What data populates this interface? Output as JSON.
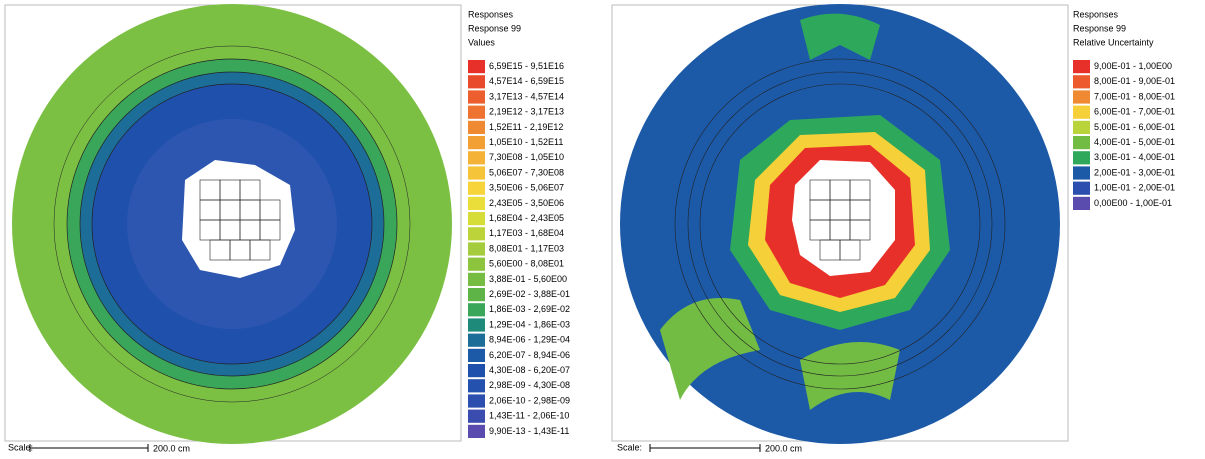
{
  "panels": [
    {
      "legend": {
        "header": "Responses",
        "response": "Response 99",
        "quantity": "Values",
        "entries": [
          {
            "label": "6,59E15 - 9,51E16",
            "color": "#e8302a"
          },
          {
            "label": "4,57E14 - 6,59E15",
            "color": "#ea4a2c"
          },
          {
            "label": "3,17E13 - 4,57E14",
            "color": "#ec5e2e"
          },
          {
            "label": "2,19E12 - 3,17E13",
            "color": "#ee7330"
          },
          {
            "label": "1,52E11 - 2,19E12",
            "color": "#f08a32"
          },
          {
            "label": "1,05E10 - 1,52E11",
            "color": "#f29f34"
          },
          {
            "label": "7,30E08 - 1,05E10",
            "color": "#f4b236"
          },
          {
            "label": "5,06E07 - 7,30E08",
            "color": "#f6c438"
          },
          {
            "label": "3,50E06 - 5,06E07",
            "color": "#f6d43a"
          },
          {
            "label": "2,43E05 - 3,50E06",
            "color": "#eade3a"
          },
          {
            "label": "1,68E04 - 2,43E05",
            "color": "#d6dc38"
          },
          {
            "label": "1,17E03 - 1,68E04",
            "color": "#bcd43a"
          },
          {
            "label": "8,08E01 - 1,17E03",
            "color": "#a4cc3c"
          },
          {
            "label": "5,60E00 - 8,08E01",
            "color": "#8cc43e"
          },
          {
            "label": "3,88E-01 - 5,60E00",
            "color": "#76bc42"
          },
          {
            "label": "2,69E-02 - 3,88E-01",
            "color": "#5eb446"
          },
          {
            "label": "1,86E-03 - 2,69E-02",
            "color": "#3aa65a"
          },
          {
            "label": "1,29E-04 - 1,86E-03",
            "color": "#1e8a7a"
          },
          {
            "label": "8,94E-06 - 1,29E-04",
            "color": "#1c6e98"
          },
          {
            "label": "6,20E-07 - 8,94E-06",
            "color": "#1c5aa8"
          },
          {
            "label": "4,30E-08 - 6,20E-07",
            "color": "#1e50ac"
          },
          {
            "label": "2,98E-09 - 4,30E-08",
            "color": "#2450ae"
          },
          {
            "label": "2,06E-10 - 2,98E-09",
            "color": "#2c4eae"
          },
          {
            "label": "1,43E-11 - 2,06E-10",
            "color": "#3a4cae"
          },
          {
            "label": "9,90E-13 - 1,43E-11",
            "color": "#5a4cae"
          }
        ]
      },
      "scale": {
        "label": "Scale:",
        "length": "200.0 cm"
      }
    },
    {
      "legend": {
        "header": "Responses",
        "response": "Response 99",
        "quantity": "Relative Uncertainty",
        "entries": [
          {
            "label": "9,00E-01 - 1,00E00",
            "color": "#e8302a"
          },
          {
            "label": "8,00E-01 - 9,00E-01",
            "color": "#ec5a2e"
          },
          {
            "label": "7,00E-01 - 8,00E-01",
            "color": "#f08a32"
          },
          {
            "label": "6,00E-01 - 7,00E-01",
            "color": "#f6d038"
          },
          {
            "label": "5,00E-01 - 6,00E-01",
            "color": "#b8d43a"
          },
          {
            "label": "4,00E-01 - 5,00E-01",
            "color": "#72bc44"
          },
          {
            "label": "3,00E-01 - 4,00E-01",
            "color": "#2ea85a"
          },
          {
            "label": "2,00E-01 - 3,00E-01",
            "color": "#1c5aa8"
          },
          {
            "label": "1,00E-01 - 2,00E-01",
            "color": "#2c4eae"
          },
          {
            "label": "0,00E00 - 1,00E-01",
            "color": "#5a4cae"
          }
        ]
      },
      "scale": {
        "label": "Scale:",
        "length": "200.0 cm"
      }
    }
  ]
}
